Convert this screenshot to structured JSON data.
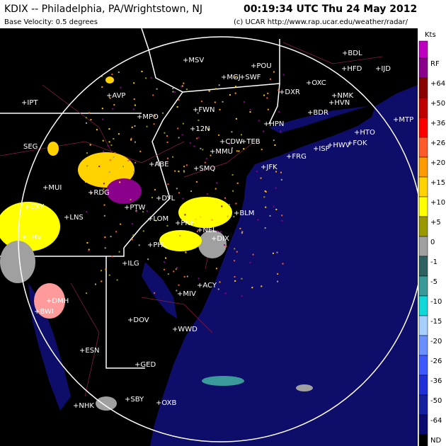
{
  "header": {
    "title": "KDIX -- Philadelphia, PA/Wrightstown, NJ",
    "timestamp": "00:19:34 UTC Thu 24 May 2012",
    "subtitle": "Base Velocity: 0.5 degrees",
    "credit": "(c) UCAR  http://www.rap.ucar.edu/weather/radar/"
  },
  "legend": {
    "unit": "Kts",
    "items": [
      {
        "label": "RF",
        "color": "#8a008a"
      },
      {
        "label": "+64",
        "color": "#8b0000"
      },
      {
        "label": "+50",
        "color": "#c00000"
      },
      {
        "label": "+36",
        "color": "#ff0000"
      },
      {
        "label": "+26",
        "color": "#ff5a2a"
      },
      {
        "label": "+20",
        "color": "#ff9a00"
      },
      {
        "label": "+15",
        "color": "#ffd200"
      },
      {
        "label": "+10",
        "color": "#ffff00"
      },
      {
        "label": "+5",
        "color": "#9a9a00"
      },
      {
        "label": "0",
        "color": "#a0a0a0"
      },
      {
        "label": "-1",
        "color": "#2e6262"
      },
      {
        "label": "-5",
        "color": "#3a9a9a"
      },
      {
        "label": "-10",
        "color": "#10d8d8"
      },
      {
        "label": "-15",
        "color": "#a8d0ff"
      },
      {
        "label": "-20",
        "color": "#6a90ff"
      },
      {
        "label": "-26",
        "color": "#3c5aff"
      },
      {
        "label": "-36",
        "color": "#2030d8"
      },
      {
        "label": "-50",
        "color": "#1420a0"
      },
      {
        "label": "-64",
        "color": "#0a0a70"
      },
      {
        "label": "ND",
        "color": "#000000"
      }
    ]
  },
  "map": {
    "labels": [
      "+BDL",
      "+HFD",
      "+IJD",
      "+MSV",
      "+POU",
      "+MGJ",
      "+SWF",
      "+OXC",
      "+NMK",
      "+DXR",
      "+HVN",
      "+BDR",
      "+AVP",
      "+IPT",
      "+MPO",
      "+FWN",
      "+HPN",
      "+MTP",
      "+HTO",
      "+12N",
      "+CDW",
      "+TEB",
      "+ISP",
      "+HWV",
      "+FOK",
      "SEG",
      "+MMU",
      "+FRG",
      "+SMQ",
      "+JFK",
      "+ABE",
      "+MUI",
      "+RDG",
      "+DYL",
      "+CXY",
      "+LNS",
      "+PTW",
      "+LOM",
      "+THV",
      "+BLM",
      "+PNE",
      "+NEL",
      "+PHL",
      "+DIX",
      "+ILG",
      "+ACY",
      "+MIV",
      "+DMH",
      "+BWI",
      "+DOV",
      "+WWD",
      "+ESN",
      "+GED",
      "+NHK",
      "+SBY",
      "+OXB"
    ]
  }
}
